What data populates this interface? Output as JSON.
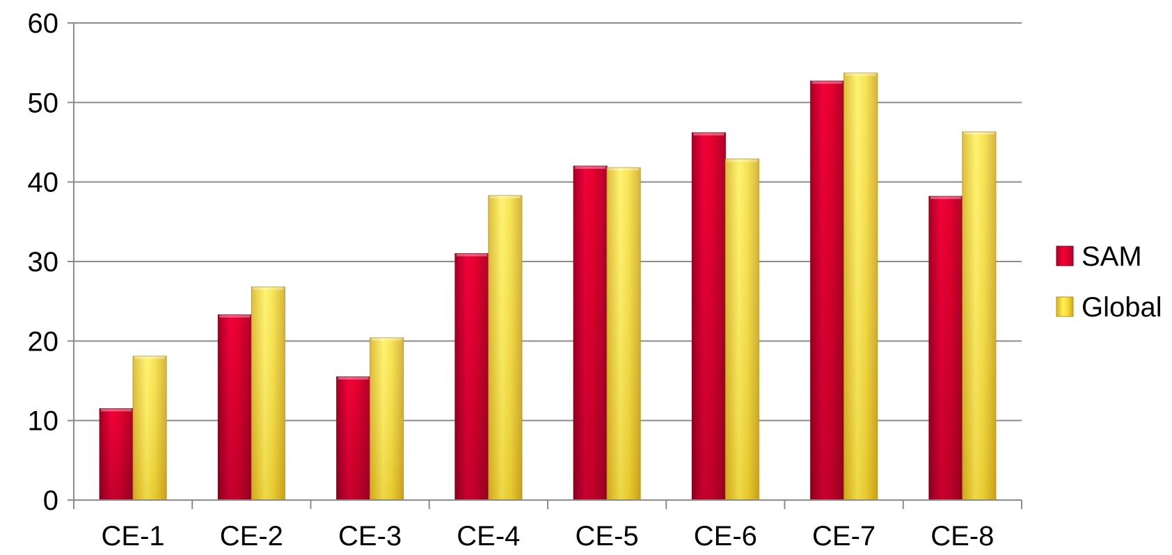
{
  "chart_data": {
    "type": "bar",
    "categories": [
      "CE-1",
      "CE-2",
      "CE-3",
      "CE-4",
      "CE-5",
      "CE-6",
      "CE-7",
      "CE-8"
    ],
    "series": [
      {
        "name": "SAM",
        "color": "#d9002f",
        "values": [
          11.5,
          23.3,
          15.5,
          31.0,
          42.0,
          46.2,
          52.7,
          38.2
        ]
      },
      {
        "name": "Global",
        "color": "#f2d21f",
        "values": [
          18.1,
          26.8,
          20.4,
          38.3,
          41.8,
          42.9,
          53.7,
          46.3
        ]
      }
    ],
    "title": "",
    "xlabel": "",
    "ylabel": "",
    "ylim": [
      0,
      60
    ],
    "yticks": [
      0,
      10,
      20,
      30,
      40,
      50,
      60
    ],
    "grid": true,
    "legend_position": "right"
  }
}
